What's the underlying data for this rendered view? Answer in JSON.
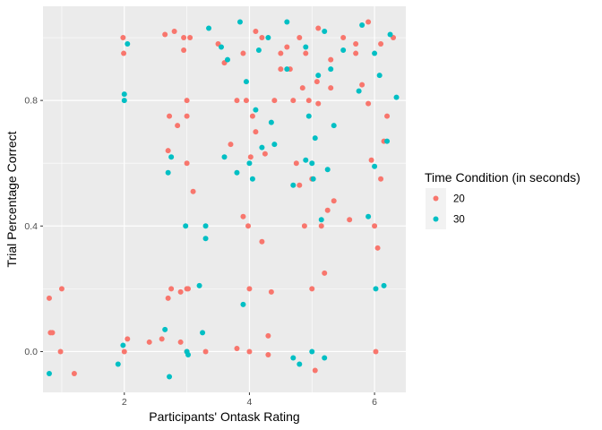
{
  "chart_data": {
    "type": "scatter",
    "title": "",
    "xlabel": "Participants' Ontask Rating",
    "ylabel": "Trial Percentage Correct",
    "xlim": [
      0.7,
      6.5
    ],
    "ylim": [
      -0.13,
      1.1
    ],
    "x_ticks": [
      2,
      4,
      6
    ],
    "x_tick_labels": [
      "2",
      "4",
      "6"
    ],
    "y_ticks": [
      0.0,
      0.4,
      0.8
    ],
    "y_tick_labels": [
      "0.0",
      "0.4",
      "0.8"
    ],
    "grid": true,
    "background": "#ebebeb",
    "legend": {
      "title": "Time Condition (in seconds)",
      "position": "right",
      "entries": [
        {
          "label": "20",
          "color": "#f8766d"
        },
        {
          "label": "30",
          "color": "#00bfc4"
        }
      ]
    },
    "series": [
      {
        "name": "20",
        "color": "#f8766d",
        "points": [
          [
            0.8,
            0.17
          ],
          [
            0.82,
            0.06
          ],
          [
            0.85,
            0.06
          ],
          [
            1.0,
            0.2
          ],
          [
            0.98,
            0.0
          ],
          [
            1.2,
            -0.07
          ],
          [
            1.98,
            1.0
          ],
          [
            1.99,
            0.95
          ],
          [
            2.05,
            0.04
          ],
          [
            2.0,
            0.0
          ],
          [
            2.4,
            0.03
          ],
          [
            2.6,
            0.04
          ],
          [
            2.65,
            1.01
          ],
          [
            2.7,
            0.64
          ],
          [
            2.7,
            0.17
          ],
          [
            2.72,
            0.75
          ],
          [
            2.75,
            0.2
          ],
          [
            2.8,
            1.02
          ],
          [
            2.85,
            0.72
          ],
          [
            2.9,
            0.03
          ],
          [
            2.9,
            0.19
          ],
          [
            2.95,
            0.96
          ],
          [
            2.95,
            1.0
          ],
          [
            3.0,
            0.8
          ],
          [
            3.0,
            0.75
          ],
          [
            3.0,
            0.6
          ],
          [
            3.0,
            0.2
          ],
          [
            3.0,
            0.0
          ],
          [
            3.02,
            0.2
          ],
          [
            3.05,
            1.0
          ],
          [
            3.1,
            0.51
          ],
          [
            3.3,
            0.0
          ],
          [
            3.5,
            0.98
          ],
          [
            3.6,
            0.92
          ],
          [
            3.7,
            0.66
          ],
          [
            3.8,
            0.8
          ],
          [
            3.8,
            0.01
          ],
          [
            3.9,
            0.43
          ],
          [
            3.95,
            0.8
          ],
          [
            3.98,
            0.4
          ],
          [
            4.0,
            0.2
          ],
          [
            4.0,
            0.0
          ],
          [
            4.02,
            0.62
          ],
          [
            4.05,
            0.75
          ],
          [
            4.1,
            0.7
          ],
          [
            4.2,
            0.35
          ],
          [
            4.25,
            0.63
          ],
          [
            4.3,
            0.05
          ],
          [
            4.3,
            -0.01
          ],
          [
            4.35,
            0.19
          ],
          [
            4.4,
            0.8
          ],
          [
            4.5,
            0.9
          ],
          [
            4.6,
            0.97
          ],
          [
            4.65,
            0.9
          ],
          [
            4.7,
            0.8
          ],
          [
            4.75,
            0.6
          ],
          [
            4.8,
            0.53
          ],
          [
            4.85,
            0.84
          ],
          [
            4.88,
            0.4
          ],
          [
            4.9,
            0.95
          ],
          [
            4.95,
            0.8
          ],
          [
            5.0,
            0.2
          ],
          [
            5.0,
            0.55
          ],
          [
            5.05,
            -0.06
          ],
          [
            5.08,
            0.86
          ],
          [
            5.1,
            0.79
          ],
          [
            5.15,
            0.4
          ],
          [
            5.2,
            0.25
          ],
          [
            5.25,
            0.45
          ],
          [
            5.3,
            0.84
          ],
          [
            5.35,
            0.48
          ],
          [
            5.6,
            0.42
          ],
          [
            5.7,
            0.98
          ],
          [
            5.8,
            0.85
          ],
          [
            5.9,
            0.79
          ],
          [
            5.95,
            0.61
          ],
          [
            6.0,
            0.4
          ],
          [
            6.02,
            0.0
          ],
          [
            6.05,
            0.33
          ],
          [
            6.1,
            0.55
          ],
          [
            6.15,
            0.67
          ],
          [
            6.2,
            0.75
          ],
          [
            4.2,
            1.0
          ],
          [
            4.5,
            0.95
          ],
          [
            4.8,
            1.0
          ],
          [
            5.1,
            1.03
          ],
          [
            5.3,
            0.93
          ],
          [
            5.5,
            1.0
          ],
          [
            5.7,
            0.95
          ],
          [
            5.9,
            1.05
          ],
          [
            6.1,
            0.98
          ],
          [
            6.3,
            1.0
          ],
          [
            3.9,
            0.95
          ],
          [
            4.1,
            1.02
          ]
        ]
      },
      {
        "name": "30",
        "color": "#00bfc4",
        "points": [
          [
            0.8,
            -0.07
          ],
          [
            1.9,
            -0.04
          ],
          [
            1.98,
            0.02
          ],
          [
            2.0,
            0.8
          ],
          [
            2.0,
            0.82
          ],
          [
            2.05,
            0.98
          ],
          [
            2.65,
            0.07
          ],
          [
            2.7,
            0.57
          ],
          [
            2.72,
            -0.08
          ],
          [
            2.75,
            0.62
          ],
          [
            2.98,
            0.4
          ],
          [
            3.0,
            0.0
          ],
          [
            3.02,
            -0.01
          ],
          [
            3.2,
            0.21
          ],
          [
            3.25,
            0.06
          ],
          [
            3.3,
            0.36
          ],
          [
            3.3,
            0.4
          ],
          [
            3.35,
            1.03
          ],
          [
            3.55,
            0.97
          ],
          [
            3.6,
            0.62
          ],
          [
            3.65,
            0.93
          ],
          [
            3.8,
            0.57
          ],
          [
            3.9,
            0.15
          ],
          [
            3.95,
            0.86
          ],
          [
            4.0,
            0.6
          ],
          [
            4.05,
            0.55
          ],
          [
            4.1,
            0.77
          ],
          [
            4.2,
            0.65
          ],
          [
            4.35,
            0.73
          ],
          [
            4.4,
            0.66
          ],
          [
            4.6,
            0.9
          ],
          [
            4.7,
            0.53
          ],
          [
            4.7,
            -0.02
          ],
          [
            4.8,
            -0.04
          ],
          [
            4.9,
            0.61
          ],
          [
            4.95,
            0.75
          ],
          [
            5.0,
            0.6
          ],
          [
            5.0,
            0.0
          ],
          [
            5.02,
            0.55
          ],
          [
            5.05,
            0.68
          ],
          [
            5.1,
            0.88
          ],
          [
            5.15,
            0.42
          ],
          [
            5.2,
            -0.02
          ],
          [
            5.25,
            0.58
          ],
          [
            5.3,
            0.9
          ],
          [
            5.35,
            0.72
          ],
          [
            5.75,
            0.83
          ],
          [
            5.9,
            0.43
          ],
          [
            6.0,
            0.59
          ],
          [
            6.02,
            0.2
          ],
          [
            6.08,
            0.88
          ],
          [
            6.15,
            0.21
          ],
          [
            6.2,
            0.67
          ],
          [
            6.35,
            0.81
          ],
          [
            4.3,
            1.0
          ],
          [
            4.6,
            1.05
          ],
          [
            4.9,
            0.97
          ],
          [
            5.2,
            1.02
          ],
          [
            5.5,
            0.96
          ],
          [
            5.8,
            1.04
          ],
          [
            6.0,
            0.95
          ],
          [
            6.25,
            1.01
          ],
          [
            3.85,
            1.05
          ],
          [
            4.15,
            0.96
          ]
        ]
      }
    ]
  }
}
